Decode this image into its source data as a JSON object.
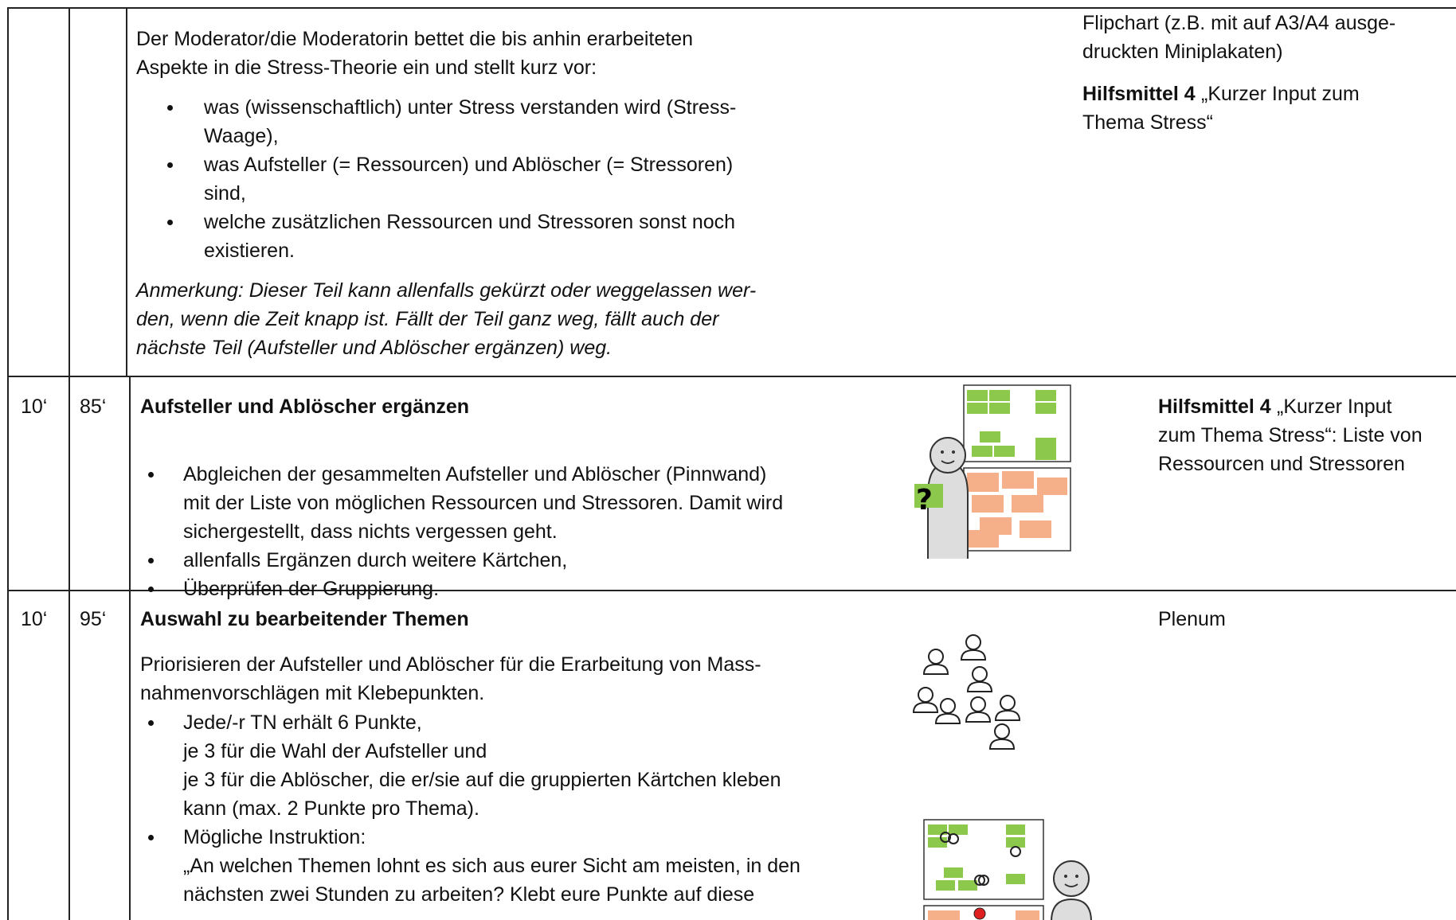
{
  "rows": [
    {
      "content": {
        "intro": [
          "Der Moderator/die Moderatorin bettet die bis anhin erarbeiteten",
          "Aspekte in die Stress-Theorie ein und stellt kurz vor:"
        ],
        "bullets": [
          [
            "was (wissenschaftlich) unter Stress verstanden wird (Stress-",
            "Waage),"
          ],
          [
            "was Aufsteller (= Ressourcen) und Ablöscher (= Stressoren)",
            "sind,"
          ],
          [
            "welche zusätzlichen Ressourcen und Stressoren sonst noch",
            "existieren."
          ]
        ],
        "note": [
          "Anmerkung: Dieser Teil kann allenfalls gekürzt oder weggelassen wer-",
          "den, wenn die Zeit knapp ist. Fällt der Teil ganz weg, fällt auch der",
          "nächste Teil (Aufsteller und Ablöscher ergänzen) weg."
        ]
      },
      "materials": [
        {
          "lines": [
            "Flipchart (z.B. mit auf A3/A4 ausge-",
            "druckten Miniplakaten)"
          ]
        },
        {
          "bold": "Hilfsmittel 4",
          "lines": [
            "„Kurzer Input zum",
            "Thema Stress“"
          ]
        }
      ]
    },
    {
      "time": "10‘",
      "total": "85‘",
      "content": {
        "title": "Aufsteller und Ablöscher ergänzen",
        "bullets": [
          [
            "Abgleichen der gesammelten Aufsteller und Ablöscher (Pinnwand)",
            "mit der Liste von möglichen Ressourcen und Stressoren. Damit wird",
            "sichergestellt, dass nichts vergessen geht."
          ],
          [
            "allenfalls Ergänzen durch weitere Kärtchen,"
          ],
          [
            "Überprüfen der Gruppierung."
          ]
        ]
      },
      "materials": [
        {
          "bold": "Hilfsmittel 4",
          "lines": [
            "„Kurzer Input",
            "zum Thema Stress“: Liste von",
            "Ressourcen und Stressoren"
          ]
        }
      ]
    },
    {
      "time": "10‘",
      "total": "95‘",
      "content": {
        "title": "Auswahl zu bearbeitender Themen",
        "intro": [
          "Priorisieren der Aufsteller und Ablöscher für die Erarbeitung von Mass-",
          "nahmenvorschlägen mit Klebepunkten."
        ],
        "bullets": [
          [
            "Jede/-r TN erhält 6 Punkte,",
            "je 3 für die Wahl der Aufsteller und",
            "je 3 für die Ablöscher, die er/sie auf die gruppierten Kärtchen kleben",
            "kann (max. 2 Punkte pro Thema)."
          ],
          [
            "Mögliche Instruktion:",
            "„An welchen Themen lohnt es sich aus eurer Sicht am meisten, in den",
            "nächsten zwei Stunden zu arbeiten? Klebt eure Punkte auf diese"
          ]
        ]
      },
      "materials": [
        {
          "lines": [
            "Plenum"
          ]
        }
      ]
    }
  ]
}
